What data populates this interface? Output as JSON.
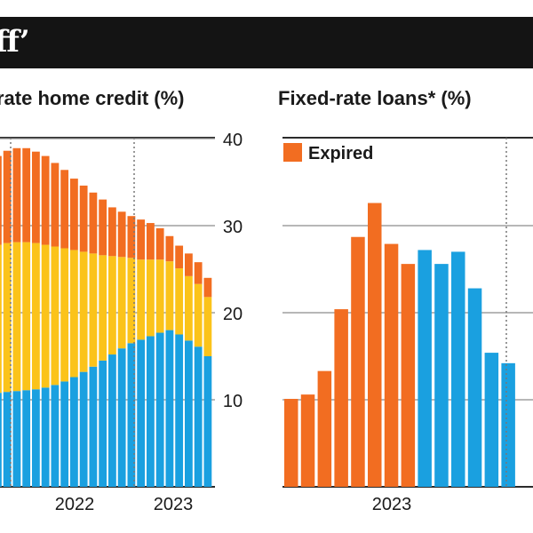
{
  "header": {
    "title": "ff’"
  },
  "colors": {
    "background": "#ffffff",
    "title_bar": "#141414",
    "orange": "#f26d21",
    "yellow": "#fbc31a",
    "blue": "#1aa0e0",
    "text": "#1a1a1a",
    "grid": "#8c8c8c",
    "axis": "#2b2b2b"
  },
  "chart_data": [
    {
      "type": "bar",
      "stacked": true,
      "title": "rate home credit (%)",
      "yticks": [
        10,
        20,
        30,
        40
      ],
      "ylim": [
        0,
        40
      ],
      "xtick_labels": [
        "2022",
        "2023"
      ],
      "grid": true,
      "series": [
        {
          "values": [
            10.8,
            10.9,
            11.0,
            11.1,
            11.2,
            11.4,
            11.7,
            12.1,
            12.6,
            13.2,
            13.8,
            14.5,
            15.2,
            15.9,
            16.5,
            16.9,
            17.3,
            17.7,
            18.0,
            17.5,
            16.8,
            16.1,
            15.0
          ]
        },
        {
          "values": [
            17.0,
            17.1,
            17.1,
            17.0,
            16.8,
            16.4,
            15.9,
            15.3,
            14.6,
            13.8,
            13.0,
            12.1,
            11.3,
            10.5,
            9.8,
            9.2,
            8.8,
            8.4,
            7.9,
            7.6,
            7.4,
            7.2,
            6.8
          ]
        },
        {
          "values": [
            10.2,
            10.6,
            10.8,
            10.8,
            10.5,
            10.2,
            9.6,
            9.0,
            8.2,
            7.6,
            7.0,
            6.4,
            5.6,
            5.2,
            4.8,
            4.6,
            4.2,
            3.6,
            2.9,
            2.6,
            2.6,
            2.5,
            2.2
          ]
        }
      ]
    },
    {
      "type": "bar",
      "title": "Fixed-rate loans* (%)",
      "legend": [
        "Expired"
      ],
      "xtick_labels": [
        "2023"
      ],
      "grid": true,
      "series": [
        {
          "name": "Expired",
          "values": [
            10.1,
            10.6,
            13.3,
            20.4,
            28.7,
            32.6,
            27.9,
            25.6
          ]
        },
        {
          "values": [
            27.2,
            25.6,
            27.0,
            22.8,
            15.4,
            14.2
          ]
        }
      ]
    }
  ]
}
